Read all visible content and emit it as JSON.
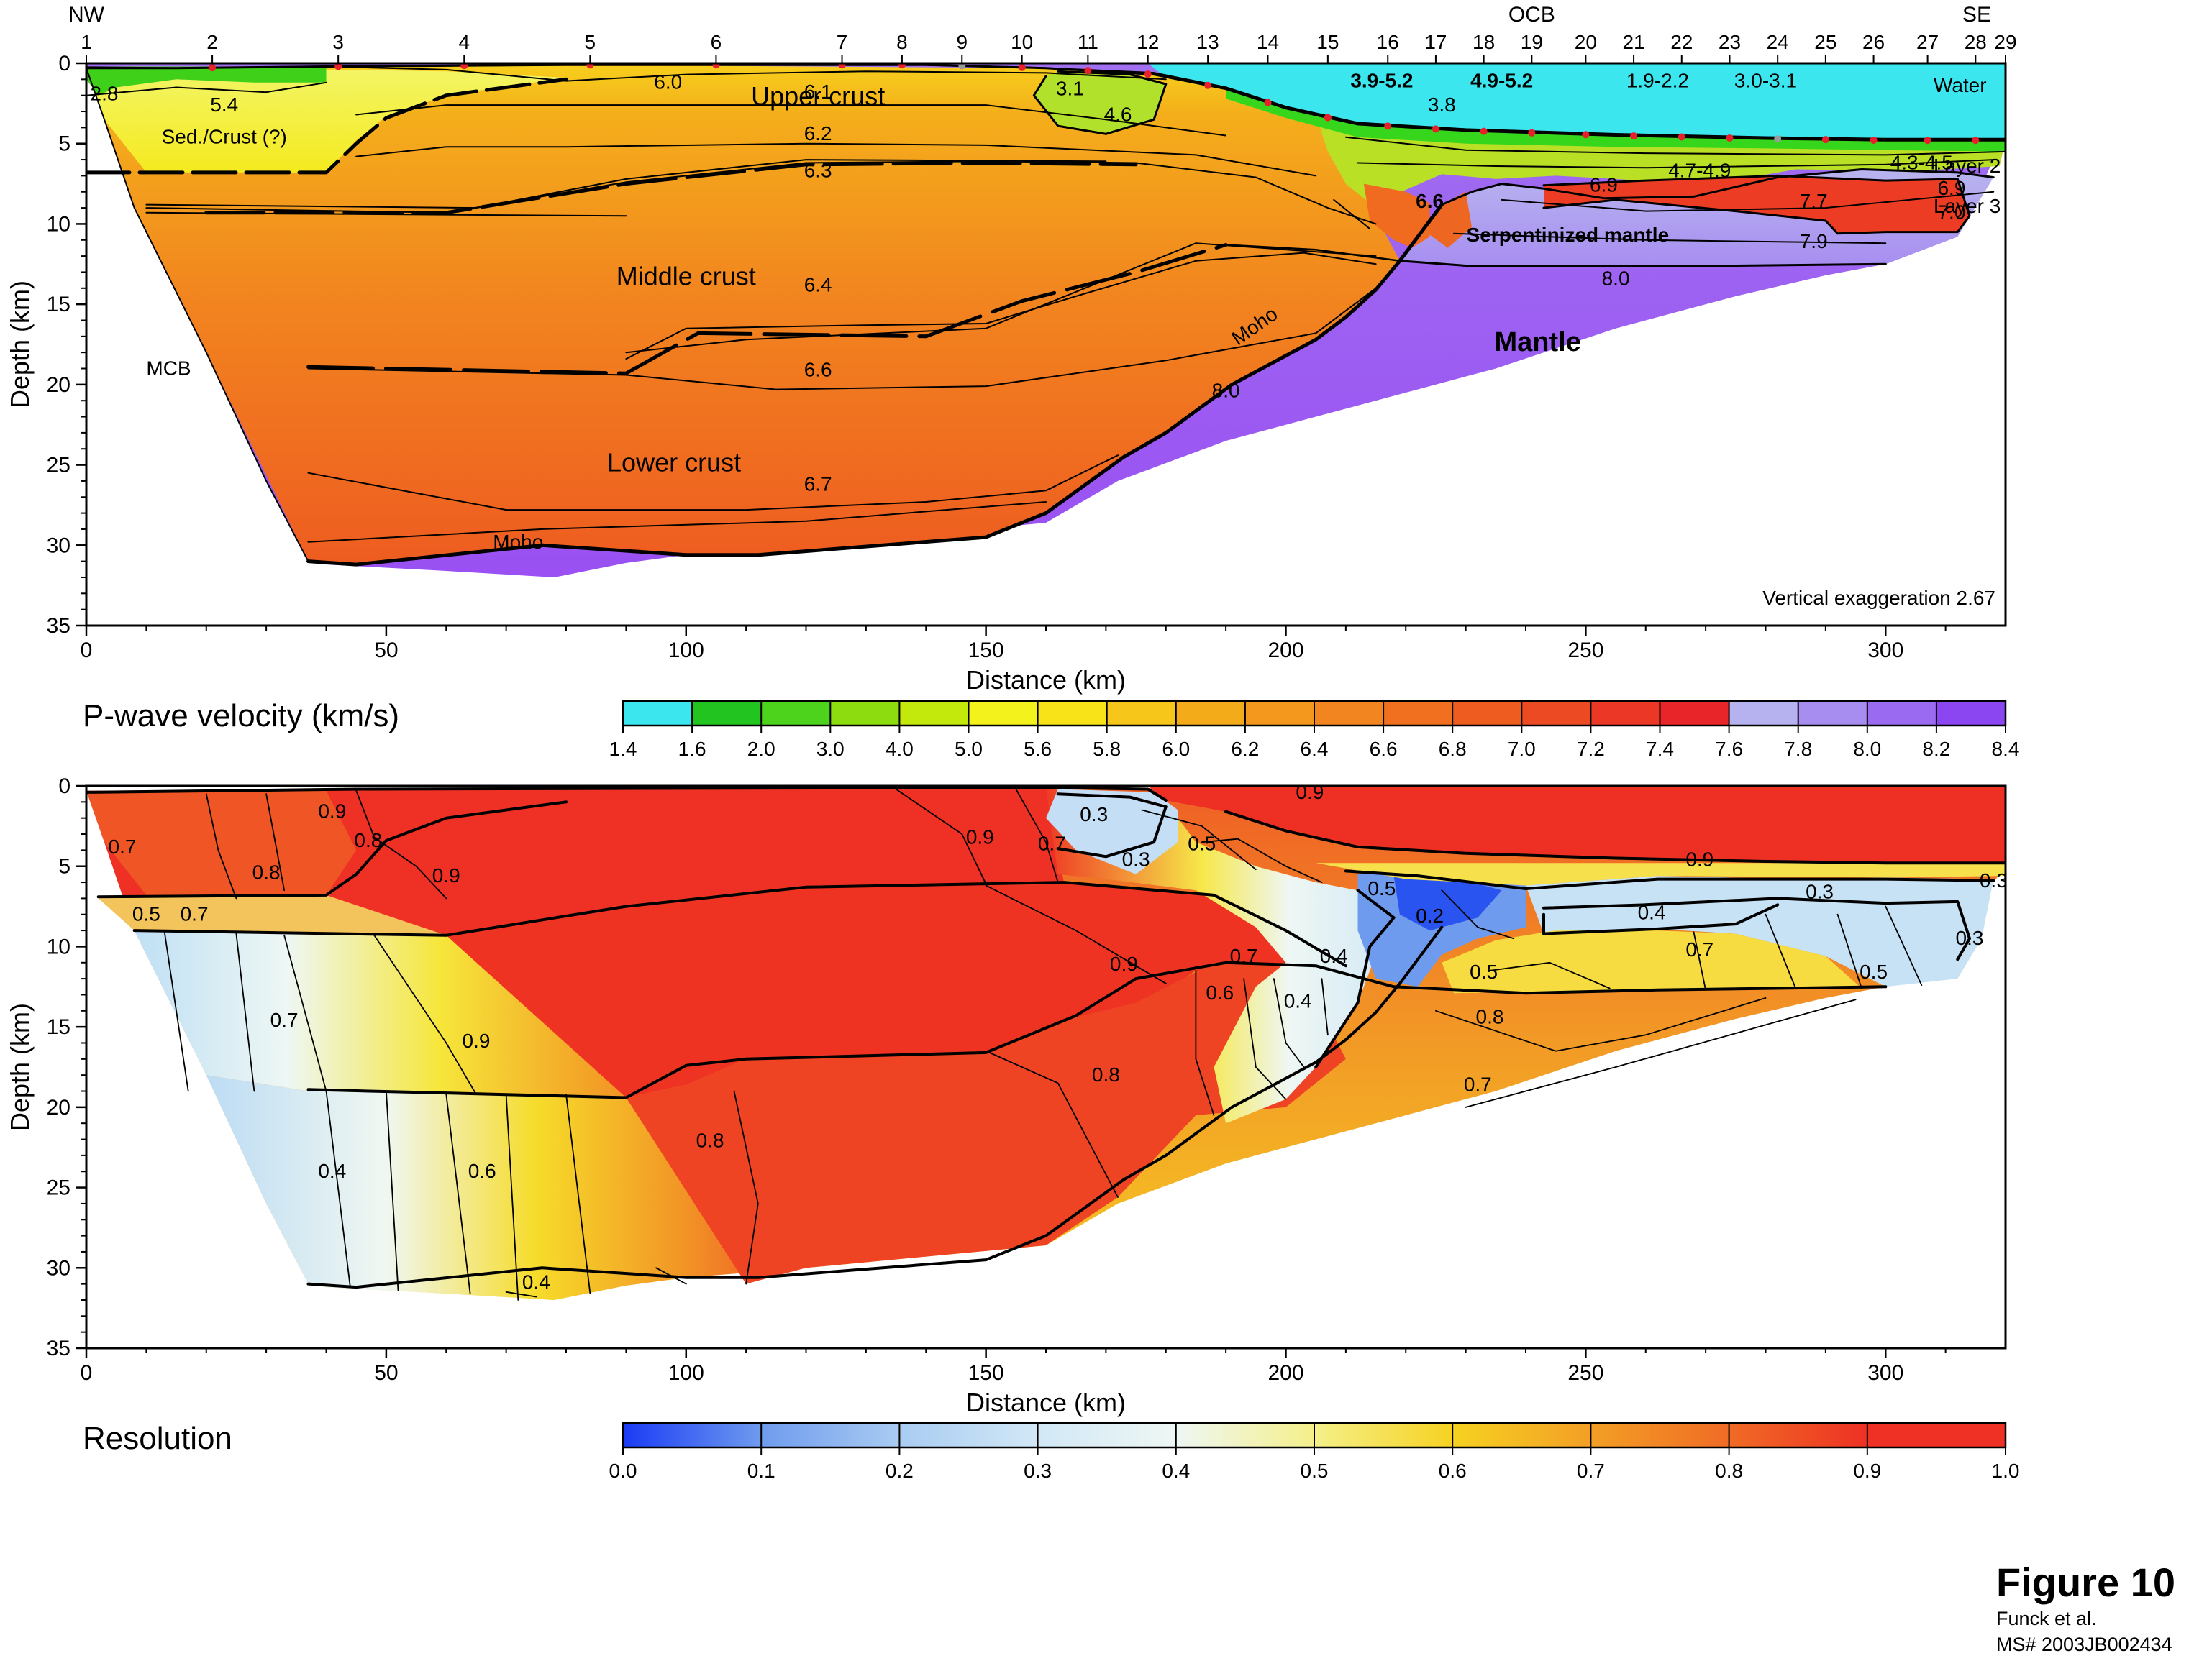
{
  "chart_data": [
    {
      "type": "heatmap",
      "panel": "velocity",
      "xlabel": "Distance (km)",
      "ylabel": "Depth (km)",
      "xlim": [
        0,
        320
      ],
      "ylim": [
        35,
        0
      ],
      "xticks": [
        0,
        50,
        100,
        150,
        200,
        250,
        300
      ],
      "yticks": [
        0,
        5,
        10,
        15,
        20,
        25,
        30,
        35
      ],
      "ends": {
        "left": "NW",
        "right": "SE"
      },
      "ocb_label": "OCB",
      "ocb_km": 241,
      "stations": {
        "labels": [
          "1",
          "2",
          "3",
          "4",
          "5",
          "6",
          "7",
          "8",
          "9",
          "10",
          "11",
          "12",
          "13",
          "14",
          "15",
          "16",
          "17",
          "18",
          "19",
          "20",
          "21",
          "22",
          "23",
          "24",
          "25",
          "26",
          "27",
          "28",
          "29"
        ],
        "km": [
          0,
          21,
          42,
          63,
          84,
          105,
          126,
          136,
          146,
          156,
          167,
          177,
          187,
          197,
          207,
          217,
          225,
          233,
          241,
          250,
          258,
          266,
          274,
          282,
          290,
          298,
          307,
          315,
          320
        ]
      },
      "layers": [
        {
          "name": "Water",
          "velocity": [
            1.4,
            1.6
          ]
        },
        {
          "name": "Sed./Crust (?)",
          "velocity": [
            2.8,
            5.4
          ]
        },
        {
          "name": "Upper crust",
          "velocity": [
            6.0,
            6.3
          ]
        },
        {
          "name": "Middle crust",
          "velocity": [
            6.4,
            6.6
          ]
        },
        {
          "name": "Lower crust",
          "velocity": [
            6.7
          ]
        },
        {
          "name": "Layer 2",
          "velocity": [
            4.3,
            4.5
          ]
        },
        {
          "name": "Layer 3",
          "velocity": [
            6.9,
            7.0
          ]
        },
        {
          "name": "Serpentinized mantle",
          "velocity": [
            7.7,
            7.9
          ]
        },
        {
          "name": "Mantle",
          "velocity": [
            8.0
          ]
        }
      ],
      "region_labels": [
        "Water",
        "Upper crust",
        "Sed./Crust (?)",
        "Middle crust",
        "Lower crust",
        "Moho",
        "MCB",
        "Layer 2",
        "Layer 3",
        "Serpentinized mantle",
        "Mantle"
      ],
      "velocity_labels": [
        {
          "x": 3,
          "y": 2.3,
          "text": "2.8"
        },
        {
          "x": 23,
          "y": 3.0,
          "text": "5.4"
        },
        {
          "x": 97,
          "y": 1.6,
          "text": "6.0"
        },
        {
          "x": 122,
          "y": 2.2,
          "text": "6.1"
        },
        {
          "x": 122,
          "y": 4.8,
          "text": "6.2"
        },
        {
          "x": 122,
          "y": 7.1,
          "text": "6.3"
        },
        {
          "x": 122,
          "y": 14.2,
          "text": "6.4"
        },
        {
          "x": 122,
          "y": 19.5,
          "text": "6.6"
        },
        {
          "x": 122,
          "y": 26.6,
          "text": "6.7"
        },
        {
          "x": 190,
          "y": 20.8,
          "text": "8.0"
        },
        {
          "x": 164,
          "y": 2.0,
          "text": "3.1"
        },
        {
          "x": 172,
          "y": 3.6,
          "text": "4.6"
        },
        {
          "x": 226,
          "y": 3.0,
          "text": "3.8"
        },
        {
          "x": 262,
          "y": 1.5,
          "text": "1.9-2.2"
        },
        {
          "x": 280,
          "y": 1.5,
          "text": "3.0-3.1"
        },
        {
          "x": 269,
          "y": 7.1,
          "text": "4.7-4.9"
        },
        {
          "x": 306,
          "y": 6.6,
          "text": "4.3-4.5"
        },
        {
          "x": 253,
          "y": 8.0,
          "text": "6.9"
        },
        {
          "x": 311,
          "y": 8.2,
          "text": "6.9"
        },
        {
          "x": 311,
          "y": 9.7,
          "text": "7.0"
        },
        {
          "x": 288,
          "y": 9.0,
          "text": "7.7"
        },
        {
          "x": 288,
          "y": 11.5,
          "text": "7.9"
        },
        {
          "x": 255,
          "y": 13.8,
          "text": "8.0"
        }
      ],
      "white_labels": [
        {
          "x": 216,
          "y": 1.5,
          "text": "3.9-5.2"
        },
        {
          "x": 236,
          "y": 1.5,
          "text": "4.9-5.2"
        },
        {
          "x": 224,
          "y": 9.0,
          "text": "6.6"
        }
      ],
      "note": "Vertical exaggeration 2.67"
    },
    {
      "type": "heatmap",
      "panel": "resolution",
      "xlabel": "Distance (km)",
      "ylabel": "Depth (km)",
      "xlim": [
        0,
        320
      ],
      "ylim": [
        35,
        0
      ],
      "xticks": [
        0,
        50,
        100,
        150,
        200,
        250,
        300
      ],
      "yticks": [
        0,
        5,
        10,
        15,
        20,
        25,
        30,
        35
      ],
      "contour_labels": [
        {
          "x": 204,
          "y": 0.8,
          "text": "0.9"
        },
        {
          "x": 41,
          "y": 2.0,
          "text": "0.9"
        },
        {
          "x": 47,
          "y": 3.8,
          "text": "0.8"
        },
        {
          "x": 6,
          "y": 4.2,
          "text": "0.7"
        },
        {
          "x": 30,
          "y": 5.8,
          "text": "0.8"
        },
        {
          "x": 60,
          "y": 6.0,
          "text": "0.9"
        },
        {
          "x": 149,
          "y": 3.6,
          "text": "0.9"
        },
        {
          "x": 161,
          "y": 4.0,
          "text": "0.7"
        },
        {
          "x": 168,
          "y": 2.2,
          "text": "0.3"
        },
        {
          "x": 175,
          "y": 5.0,
          "text": "0.3"
        },
        {
          "x": 186,
          "y": 4.0,
          "text": "0.5"
        },
        {
          "x": 216,
          "y": 6.8,
          "text": "0.5"
        },
        {
          "x": 224,
          "y": 8.5,
          "text": "0.2"
        },
        {
          "x": 269,
          "y": 5.0,
          "text": "0.9"
        },
        {
          "x": 289,
          "y": 7.0,
          "text": "0.3"
        },
        {
          "x": 318,
          "y": 6.3,
          "text": "0.3"
        },
        {
          "x": 261,
          "y": 8.3,
          "text": "0.4"
        },
        {
          "x": 314,
          "y": 9.9,
          "text": "0.3"
        },
        {
          "x": 269,
          "y": 10.6,
          "text": "0.7"
        },
        {
          "x": 298,
          "y": 12.0,
          "text": "0.5"
        },
        {
          "x": 10,
          "y": 8.4,
          "text": "0.5"
        },
        {
          "x": 18,
          "y": 8.4,
          "text": "0.7"
        },
        {
          "x": 173,
          "y": 11.5,
          "text": "0.9"
        },
        {
          "x": 193,
          "y": 11.0,
          "text": "0.7"
        },
        {
          "x": 208,
          "y": 11.0,
          "text": "0.4"
        },
        {
          "x": 233,
          "y": 12.0,
          "text": "0.5"
        },
        {
          "x": 189,
          "y": 13.3,
          "text": "0.6"
        },
        {
          "x": 202,
          "y": 13.8,
          "text": "0.4"
        },
        {
          "x": 33,
          "y": 15.0,
          "text": "0.7"
        },
        {
          "x": 234,
          "y": 14.8,
          "text": "0.8"
        },
        {
          "x": 65,
          "y": 16.3,
          "text": "0.9"
        },
        {
          "x": 170,
          "y": 18.4,
          "text": "0.8"
        },
        {
          "x": 232,
          "y": 19.0,
          "text": "0.7"
        },
        {
          "x": 104,
          "y": 22.5,
          "text": "0.8"
        },
        {
          "x": 41,
          "y": 24.4,
          "text": "0.4"
        },
        {
          "x": 66,
          "y": 24.4,
          "text": "0.6"
        },
        {
          "x": 75,
          "y": 31.3,
          "text": "0.4"
        }
      ]
    }
  ],
  "velocity_colorbar": {
    "title": "P-wave velocity (km/s)",
    "ticks": [
      "1.4",
      "1.6",
      "2.0",
      "3.0",
      "4.0",
      "5.0",
      "5.6",
      "5.8",
      "6.0",
      "6.2",
      "6.4",
      "6.6",
      "6.8",
      "7.0",
      "7.2",
      "7.4",
      "7.6",
      "7.8",
      "8.0",
      "8.2",
      "8.4"
    ],
    "colors": [
      "#3ce6ee",
      "#22c51f",
      "#4ed31c",
      "#8cdc10",
      "#c2e80c",
      "#f3f21c",
      "#f8e218",
      "#f6c71a",
      "#f4ab1a",
      "#f3981c",
      "#f2851f",
      "#f0701f",
      "#ee5c20",
      "#ec4a22",
      "#ea3726",
      "#e82528",
      "#b6b2ef",
      "#a88df0",
      "#9a6af1",
      "#8b46f2"
    ]
  },
  "resolution_colorbar": {
    "title": "Resolution",
    "ticks": [
      "0.0",
      "0.1",
      "0.2",
      "0.3",
      "0.4",
      "0.5",
      "0.6",
      "0.7",
      "0.8",
      "0.9",
      "1.0"
    ],
    "colors": [
      "#1a3bf5",
      "#6f9bee",
      "#a9ccf2",
      "#d2e8f6",
      "#eef7f4",
      "#f5f08a",
      "#f6d221",
      "#f39f25",
      "#f06b25",
      "#ee3124"
    ]
  },
  "figure_label": {
    "title": "Figure 10",
    "authors": "Funck et al.",
    "ms": "MS# 2003JB002434"
  }
}
